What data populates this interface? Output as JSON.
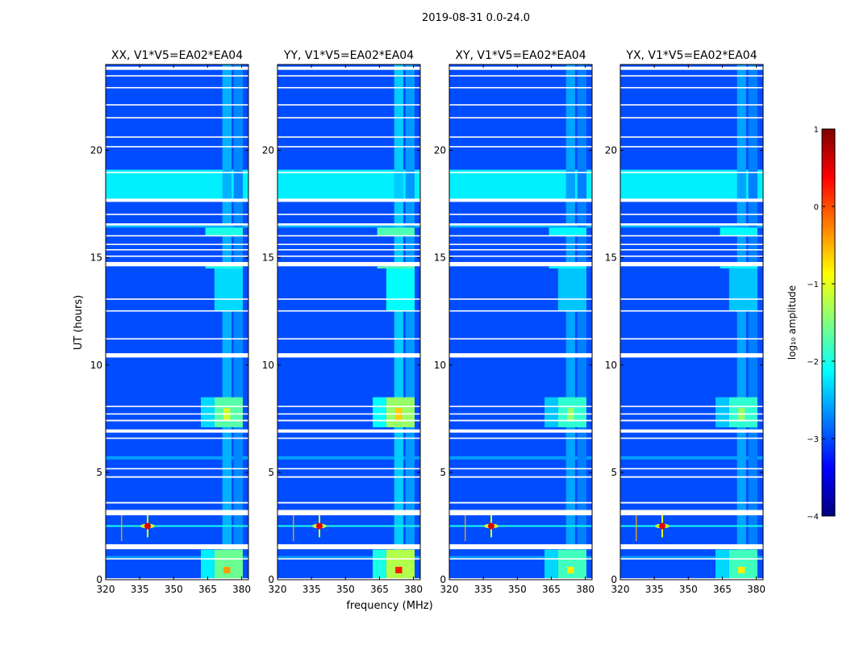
{
  "figure_title": "2019-08-31 0.0-24.0",
  "colorbar_label": "log₁₀ amplitude",
  "colors": {
    "background": "#ffffff",
    "axes": "#000000",
    "gap": "#ffffff",
    "colormap": [
      "#00007f",
      "#0000ff",
      "#007fff",
      "#00ffff",
      "#7fff7f",
      "#ffff00",
      "#ff7f00",
      "#ff0000",
      "#7f0000"
    ]
  },
  "chart_data": {
    "type": "heatmap",
    "title": "2019-08-31 0.0-24.0",
    "xlabel": "frequency (MHz)",
    "ylabel": "UT (hours)",
    "xlim": [
      320,
      383
    ],
    "ylim": [
      0,
      24
    ],
    "xticks": [
      320,
      335,
      350,
      365,
      380
    ],
    "yticks": [
      0,
      5,
      10,
      15,
      20
    ],
    "panels": [
      {
        "name": "XX, V1*V5=EA02*EA04",
        "polarization": "XX",
        "rfi_gain": 1.0
      },
      {
        "name": "YY, V1*V5=EA02*EA04",
        "polarization": "YY",
        "rfi_gain": 1.25
      },
      {
        "name": "XY, V1*V5=EA02*EA04",
        "polarization": "XY",
        "rfi_gain": 0.85
      },
      {
        "name": "YX, V1*V5=EA02*EA04",
        "polarization": "YX",
        "rfi_gain": 0.85
      }
    ],
    "colorbar": {
      "label": "log10 amplitude",
      "range": [
        -4,
        1
      ],
      "ticks": [
        -4,
        -3,
        -2,
        -1,
        0,
        1
      ],
      "colormap": "jet"
    },
    "background_level": -3.0,
    "flagged_time_ranges_hours": [
      [
        0.0,
        0.07
      ],
      [
        0.95,
        1.0
      ],
      [
        1.42,
        1.65
      ],
      [
        3.0,
        3.25
      ],
      [
        3.55,
        3.62
      ],
      [
        4.75,
        4.82
      ],
      [
        5.15,
        5.2
      ],
      [
        6.58,
        6.62
      ],
      [
        6.85,
        7.0
      ],
      [
        7.38,
        7.45
      ],
      [
        7.7,
        7.75
      ],
      [
        8.05,
        8.1
      ],
      [
        10.35,
        10.55
      ],
      [
        11.2,
        11.25
      ],
      [
        12.5,
        12.55
      ],
      [
        13.05,
        13.1
      ],
      [
        14.6,
        14.8
      ],
      [
        15.05,
        15.1
      ],
      [
        15.35,
        15.4
      ],
      [
        15.6,
        15.65
      ],
      [
        16.0,
        16.05
      ],
      [
        16.5,
        16.6
      ],
      [
        17.0,
        17.05
      ],
      [
        17.6,
        17.75
      ],
      [
        18.95,
        19.0
      ],
      [
        20.15,
        20.2
      ],
      [
        20.6,
        20.65
      ],
      [
        21.5,
        21.55
      ],
      [
        22.1,
        22.15
      ],
      [
        22.9,
        22.95
      ],
      [
        23.45,
        23.5
      ],
      [
        23.75,
        23.9
      ]
    ],
    "bright_time_bands": [
      {
        "t": [
          17.7,
          19.1
        ],
        "level": -2.2
      },
      {
        "t": [
          16.4,
          16.6
        ],
        "level": -2.5
      },
      {
        "t": [
          5.6,
          5.75
        ],
        "level": -2.6
      },
      {
        "t": [
          1.0,
          1.1
        ],
        "level": -2.6
      }
    ],
    "rfi_patches": [
      {
        "f": [
          371.5,
          375.5
        ],
        "t": [
          0.0,
          24.0
        ],
        "level": -2.5
      },
      {
        "f": [
          376.5,
          380.5
        ],
        "t": [
          0.0,
          24.0
        ],
        "level": -2.7
      },
      {
        "f": [
          362,
          368
        ],
        "t": [
          0.0,
          1.4
        ],
        "level": -2.2
      },
      {
        "f": [
          368,
          380.5
        ],
        "t": [
          0.0,
          1.4
        ],
        "level": -1.6
      },
      {
        "f": [
          372,
          375
        ],
        "t": [
          0.3,
          0.6
        ],
        "level": -0.4
      },
      {
        "f": [
          362,
          368
        ],
        "t": [
          7.1,
          8.5
        ],
        "level": -2.3
      },
      {
        "f": [
          368,
          380.5
        ],
        "t": [
          7.1,
          8.5
        ],
        "level": -1.7
      },
      {
        "f": [
          372,
          375
        ],
        "t": [
          7.4,
          8.0
        ],
        "level": -1.1
      },
      {
        "f": [
          368,
          380.5
        ],
        "t": [
          12.5,
          14.5
        ],
        "level": -2.3
      },
      {
        "f": [
          364,
          380.5
        ],
        "t": [
          16.0,
          16.4
        ],
        "level": -2.0
      },
      {
        "f": [
          364,
          380.5
        ],
        "t": [
          14.5,
          14.6
        ],
        "level": -2.0
      }
    ],
    "spot_source": {
      "f": 338.5,
      "t": 2.5,
      "level": 0.5
    },
    "line_feature": {
      "f_start": 320,
      "f_end": 383,
      "t": 2.5,
      "level": -2.0
    },
    "vertical_marker": {
      "f": 327.0,
      "t": [
        1.8,
        3.0
      ],
      "level": -0.5
    }
  }
}
